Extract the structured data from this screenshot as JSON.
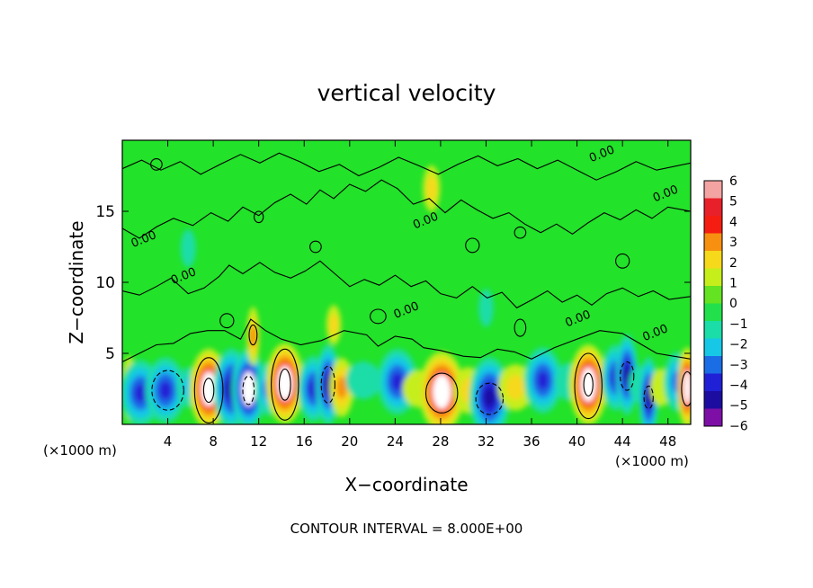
{
  "chart_data": {
    "type": "heatmap",
    "title": "vertical velocity",
    "xlabel": "X−coordinate",
    "ylabel": "Z−coordinate",
    "x_unit_left": "(×1000 m)",
    "x_unit_right": "(×1000 m)",
    "footer": "CONTOUR INTERVAL = 8.000E+00",
    "xlim": [
      0,
      50
    ],
    "ylim": [
      0,
      20
    ],
    "x_ticks": [
      4,
      8,
      12,
      16,
      20,
      24,
      28,
      32,
      36,
      40,
      44,
      48
    ],
    "x_tick_labels": [
      "4",
      "8",
      "12",
      "16",
      "20",
      "24",
      "28",
      "32",
      "36",
      "40",
      "44",
      "48"
    ],
    "y_ticks": [
      5,
      10,
      15
    ],
    "y_tick_labels": [
      "5",
      "10",
      "15"
    ],
    "contour_labels": [
      {
        "text": "0.00",
        "x": 2.0,
        "y": 12.8
      },
      {
        "text": "0.00",
        "x": 5.5,
        "y": 10.2
      },
      {
        "text": "0.00",
        "x": 26.8,
        "y": 14.1
      },
      {
        "text": "0.00",
        "x": 25.1,
        "y": 7.8
      },
      {
        "text": "0.00",
        "x": 42.3,
        "y": 18.8
      },
      {
        "text": "0.00",
        "x": 47.9,
        "y": 16.0
      },
      {
        "text": "0.00",
        "x": 40.2,
        "y": 7.2
      },
      {
        "text": "0.00",
        "x": 47.0,
        "y": 6.2
      }
    ],
    "colorbar": {
      "labels": [
        "6",
        "5",
        "4",
        "3",
        "2",
        "1",
        "0",
        "−1",
        "−2",
        "−3",
        "−4",
        "−5",
        "−6"
      ],
      "colors": [
        "#f4a3a3",
        "#e8202a",
        "#f51d12",
        "#f79010",
        "#f6d91a",
        "#c6ee1b",
        "#63e321",
        "#22e04c",
        "#1bdda8",
        "#16c8e6",
        "#1b6de6",
        "#2020d6",
        "#1d0ca0",
        "#7d0fa6"
      ]
    },
    "cells": [
      {
        "x": 0.6,
        "y": 2.5,
        "w": 0.5,
        "v": 3.5
      },
      {
        "x": 1.6,
        "y": 2.2,
        "w": 1.6,
        "v": -3.5
      },
      {
        "x": 3.8,
        "y": 2.4,
        "w": 1.6,
        "v": -3.5
      },
      {
        "x": 5.9,
        "y": 2.6,
        "w": 1.0,
        "v": -1.5
      },
      {
        "x": 7.6,
        "y": 2.5,
        "w": 1.5,
        "v": 6
      },
      {
        "x": 9.6,
        "y": 2.5,
        "w": 1.4,
        "v": -5
      },
      {
        "x": 11.1,
        "y": 2.5,
        "w": 1.3,
        "v": -6
      },
      {
        "x": 12.8,
        "y": 2.5,
        "w": 1.0,
        "v": -2.5
      },
      {
        "x": 14.3,
        "y": 2.9,
        "w": 1.5,
        "v": 6
      },
      {
        "x": 16.8,
        "y": 2.5,
        "w": 1.2,
        "v": -3.5
      },
      {
        "x": 18.1,
        "y": 2.8,
        "w": 0.9,
        "v": -5
      },
      {
        "x": 19.3,
        "y": 2.6,
        "w": 0.9,
        "v": 3
      },
      {
        "x": 21.2,
        "y": 3.1,
        "w": 1.4,
        "v": -1
      },
      {
        "x": 24.2,
        "y": 3.0,
        "w": 1.6,
        "v": -3.5
      },
      {
        "x": 26.2,
        "y": 2.5,
        "w": 1.4,
        "v": 1
      },
      {
        "x": 28.1,
        "y": 2.3,
        "w": 1.8,
        "v": 6
      },
      {
        "x": 30.4,
        "y": 2.4,
        "w": 1.1,
        "v": 2
      },
      {
        "x": 32.3,
        "y": 1.9,
        "w": 1.6,
        "v": -5
      },
      {
        "x": 34.6,
        "y": 2.6,
        "w": 1.4,
        "v": 2
      },
      {
        "x": 37.0,
        "y": 3.1,
        "w": 1.5,
        "v": -3.5
      },
      {
        "x": 39.3,
        "y": 3.0,
        "w": 1.1,
        "v": -1
      },
      {
        "x": 41.0,
        "y": 2.8,
        "w": 1.5,
        "v": 6
      },
      {
        "x": 43.4,
        "y": 3.3,
        "w": 1.1,
        "v": -3.5
      },
      {
        "x": 44.4,
        "y": 3.5,
        "w": 0.8,
        "v": -5
      },
      {
        "x": 45.6,
        "y": 2.8,
        "w": 0.9,
        "v": -1
      },
      {
        "x": 46.3,
        "y": 1.9,
        "w": 0.7,
        "v": -5
      },
      {
        "x": 47.4,
        "y": 2.6,
        "w": 0.8,
        "v": 1
      },
      {
        "x": 48.8,
        "y": 3.0,
        "w": 1.0,
        "v": -3
      },
      {
        "x": 49.7,
        "y": 2.6,
        "w": 0.7,
        "v": 6
      },
      {
        "x": 11.5,
        "y": 6.2,
        "w": 0.4,
        "v": 3
      },
      {
        "x": 27.2,
        "y": 16.6,
        "w": 0.6,
        "v": 2
      },
      {
        "x": 18.6,
        "y": 7.0,
        "w": 0.5,
        "v": 1.5
      },
      {
        "x": 5.8,
        "y": 12.4,
        "w": 0.5,
        "v": -1
      },
      {
        "x": 32.0,
        "y": 8.2,
        "w": 0.5,
        "v": -1
      }
    ],
    "contours": [
      [
        [
          0,
          4.4
        ],
        [
          1.5,
          5.0
        ],
        [
          3,
          5.6
        ],
        [
          4.5,
          5.7
        ],
        [
          6,
          6.4
        ],
        [
          7.5,
          6.6
        ],
        [
          9,
          6.6
        ],
        [
          10.4,
          6.0
        ],
        [
          11.3,
          7.4
        ],
        [
          12.6,
          6.6
        ],
        [
          14,
          6.0
        ],
        [
          15.7,
          5.6
        ],
        [
          17.5,
          5.9
        ],
        [
          19.5,
          6.6
        ],
        [
          21.5,
          6.3
        ],
        [
          22.5,
          5.5
        ],
        [
          24,
          6.2
        ],
        [
          25.5,
          6.0
        ],
        [
          26.5,
          5.4
        ],
        [
          28,
          5.2
        ],
        [
          30,
          4.8
        ],
        [
          31.5,
          4.7
        ],
        [
          33,
          5.3
        ],
        [
          34.5,
          5.1
        ],
        [
          36,
          4.6
        ],
        [
          38,
          5.4
        ],
        [
          40,
          6.0
        ],
        [
          42,
          6.6
        ],
        [
          44,
          6.4
        ],
        [
          45.5,
          5.7
        ],
        [
          47,
          5.0
        ],
        [
          48.5,
          4.8
        ],
        [
          50,
          4.6
        ]
      ],
      [
        [
          0,
          9.4
        ],
        [
          1.5,
          9.1
        ],
        [
          3,
          9.7
        ],
        [
          4.3,
          10.3
        ],
        [
          5.8,
          9.2
        ],
        [
          7.2,
          9.6
        ],
        [
          8.5,
          10.4
        ],
        [
          9.4,
          11.2
        ],
        [
          10.6,
          10.6
        ],
        [
          12.1,
          11.4
        ],
        [
          13.4,
          10.7
        ],
        [
          14.8,
          10.3
        ],
        [
          16.1,
          10.8
        ],
        [
          17.4,
          11.5
        ],
        [
          18.7,
          10.6
        ],
        [
          20,
          9.7
        ],
        [
          21.3,
          10.2
        ],
        [
          22.6,
          9.8
        ],
        [
          24,
          10.5
        ],
        [
          25.4,
          9.7
        ],
        [
          26.7,
          10.1
        ],
        [
          28,
          9.2
        ],
        [
          29.4,
          8.9
        ],
        [
          30.8,
          9.7
        ],
        [
          32.1,
          8.9
        ],
        [
          33.4,
          9.3
        ],
        [
          34.7,
          8.2
        ],
        [
          36.1,
          8.8
        ],
        [
          37.4,
          9.4
        ],
        [
          38.7,
          8.6
        ],
        [
          40,
          9.1
        ],
        [
          41.3,
          8.4
        ],
        [
          42.6,
          9.2
        ],
        [
          44,
          9.6
        ],
        [
          45.4,
          9.0
        ],
        [
          46.7,
          9.4
        ],
        [
          48.1,
          8.8
        ],
        [
          50,
          9.0
        ]
      ],
      [
        [
          0,
          13.8
        ],
        [
          1.5,
          13.1
        ],
        [
          3,
          13.9
        ],
        [
          4.5,
          14.5
        ],
        [
          6.2,
          14.0
        ],
        [
          7.8,
          14.9
        ],
        [
          9.3,
          14.3
        ],
        [
          10.6,
          15.3
        ],
        [
          12,
          14.7
        ],
        [
          13.4,
          15.6
        ],
        [
          14.8,
          16.2
        ],
        [
          16.2,
          15.5
        ],
        [
          17.4,
          16.5
        ],
        [
          18.6,
          15.9
        ],
        [
          20,
          16.9
        ],
        [
          21.4,
          16.4
        ],
        [
          22.8,
          17.2
        ],
        [
          24.2,
          16.6
        ],
        [
          25.6,
          15.5
        ],
        [
          27,
          15.9
        ],
        [
          28.4,
          14.9
        ],
        [
          29.8,
          15.8
        ],
        [
          31.2,
          15.1
        ],
        [
          32.6,
          14.5
        ],
        [
          34,
          14.9
        ],
        [
          35.4,
          14.1
        ],
        [
          36.8,
          13.5
        ],
        [
          38.2,
          14.1
        ],
        [
          39.6,
          13.4
        ],
        [
          41,
          14.2
        ],
        [
          42.4,
          14.9
        ],
        [
          43.8,
          14.4
        ],
        [
          45.2,
          15.1
        ],
        [
          46.6,
          14.5
        ],
        [
          48,
          15.3
        ],
        [
          50,
          15.0
        ]
      ],
      [
        [
          0,
          18.0
        ],
        [
          1.7,
          18.6
        ],
        [
          3.4,
          17.9
        ],
        [
          5.1,
          18.5
        ],
        [
          6.9,
          17.6
        ],
        [
          8.6,
          18.3
        ],
        [
          10.4,
          19.0
        ],
        [
          12.1,
          18.4
        ],
        [
          13.8,
          19.1
        ],
        [
          15.6,
          18.5
        ],
        [
          17.3,
          17.8
        ],
        [
          19.1,
          18.3
        ],
        [
          20.8,
          17.5
        ],
        [
          22.6,
          18.1
        ],
        [
          24.3,
          18.8
        ],
        [
          26.1,
          18.2
        ],
        [
          27.8,
          17.6
        ],
        [
          29.5,
          18.3
        ],
        [
          31.3,
          18.9
        ],
        [
          33,
          18.2
        ],
        [
          34.8,
          18.7
        ],
        [
          36.5,
          18.0
        ],
        [
          38.3,
          18.6
        ],
        [
          40,
          17.9
        ],
        [
          41.7,
          17.2
        ],
        [
          43.5,
          17.8
        ],
        [
          45.2,
          18.5
        ],
        [
          47,
          17.9
        ],
        [
          50,
          18.4
        ]
      ]
    ],
    "closed_contours": [
      {
        "x": 7.6,
        "y": 2.4,
        "rx": 1.25,
        "ry": 2.3,
        "dashed": false
      },
      {
        "x": 7.6,
        "y": 2.4,
        "rx": 0.45,
        "ry": 0.85,
        "dashed": false
      },
      {
        "x": 11.1,
        "y": 2.4,
        "rx": 0.5,
        "ry": 1.0,
        "dashed": true
      },
      {
        "x": 14.3,
        "y": 2.8,
        "rx": 1.2,
        "ry": 2.5,
        "dashed": false
      },
      {
        "x": 14.3,
        "y": 2.8,
        "rx": 0.5,
        "ry": 1.1,
        "dashed": false
      },
      {
        "x": 28.1,
        "y": 2.2,
        "rx": 1.4,
        "ry": 1.4,
        "dashed": false
      },
      {
        "x": 41.0,
        "y": 2.7,
        "rx": 1.2,
        "ry": 2.3,
        "dashed": false
      },
      {
        "x": 41.0,
        "y": 2.8,
        "rx": 0.4,
        "ry": 0.8,
        "dashed": false
      },
      {
        "x": 49.7,
        "y": 2.5,
        "rx": 0.5,
        "ry": 1.2,
        "dashed": false
      },
      {
        "x": 32.3,
        "y": 1.8,
        "rx": 1.2,
        "ry": 1.1,
        "dashed": true
      },
      {
        "x": 4.0,
        "y": 2.4,
        "rx": 1.4,
        "ry": 1.4,
        "dashed": true
      },
      {
        "x": 18.1,
        "y": 2.8,
        "rx": 0.6,
        "ry": 1.3,
        "dashed": true
      },
      {
        "x": 44.4,
        "y": 3.4,
        "rx": 0.6,
        "ry": 1.0,
        "dashed": true
      },
      {
        "x": 46.3,
        "y": 1.9,
        "rx": 0.4,
        "ry": 0.8,
        "dashed": true
      },
      {
        "x": 11.5,
        "y": 6.3,
        "rx": 0.35,
        "ry": 0.7,
        "dashed": false
      },
      {
        "x": 9.2,
        "y": 7.3,
        "rx": 0.6,
        "ry": 0.5,
        "dashed": false
      },
      {
        "x": 22.5,
        "y": 7.6,
        "rx": 0.7,
        "ry": 0.5,
        "dashed": false
      },
      {
        "x": 35.0,
        "y": 6.8,
        "rx": 0.5,
        "ry": 0.6,
        "dashed": false
      },
      {
        "x": 30.8,
        "y": 12.6,
        "rx": 0.6,
        "ry": 0.5,
        "dashed": false
      },
      {
        "x": 12.0,
        "y": 14.6,
        "rx": 0.4,
        "ry": 0.4,
        "dashed": false
      },
      {
        "x": 17.0,
        "y": 12.5,
        "rx": 0.5,
        "ry": 0.4,
        "dashed": false
      },
      {
        "x": 44.0,
        "y": 11.5,
        "rx": 0.6,
        "ry": 0.5,
        "dashed": false
      },
      {
        "x": 3.0,
        "y": 18.3,
        "rx": 0.5,
        "ry": 0.4,
        "dashed": false
      },
      {
        "x": 35.0,
        "y": 13.5,
        "rx": 0.5,
        "ry": 0.4,
        "dashed": false
      }
    ]
  }
}
